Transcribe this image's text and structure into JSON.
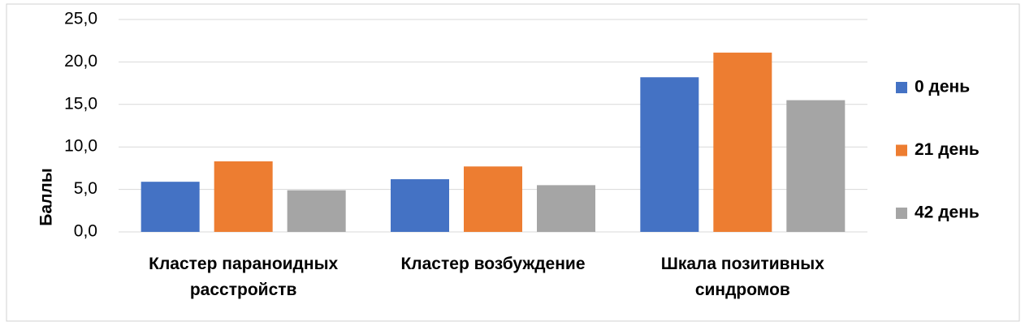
{
  "chart_data": {
    "type": "bar",
    "y_label": "Баллы",
    "categories": [
      "Кластер параноидных расстройств",
      "Кластер возбуждение",
      "Шкала позитивных синдромов"
    ],
    "series": [
      {
        "name": "0 день",
        "color": "#4472c4",
        "values": [
          5.9,
          6.2,
          18.2
        ]
      },
      {
        "name": "21 день",
        "color": "#ed7d31",
        "values": [
          8.3,
          7.7,
          21.1
        ]
      },
      {
        "name": "42 день",
        "color": "#a5a5a5",
        "values": [
          4.9,
          5.5,
          15.5
        ]
      }
    ],
    "ylim": [
      0,
      25
    ],
    "yticks": [
      {
        "value": 0,
        "label": "0,0"
      },
      {
        "value": 5,
        "label": "5,0"
      },
      {
        "value": 10,
        "label": "10,0"
      },
      {
        "value": 15,
        "label": "15,0"
      },
      {
        "value": 20,
        "label": "20,0"
      },
      {
        "value": 25,
        "label": "25,0"
      }
    ],
    "grid": true,
    "legend": "right"
  }
}
